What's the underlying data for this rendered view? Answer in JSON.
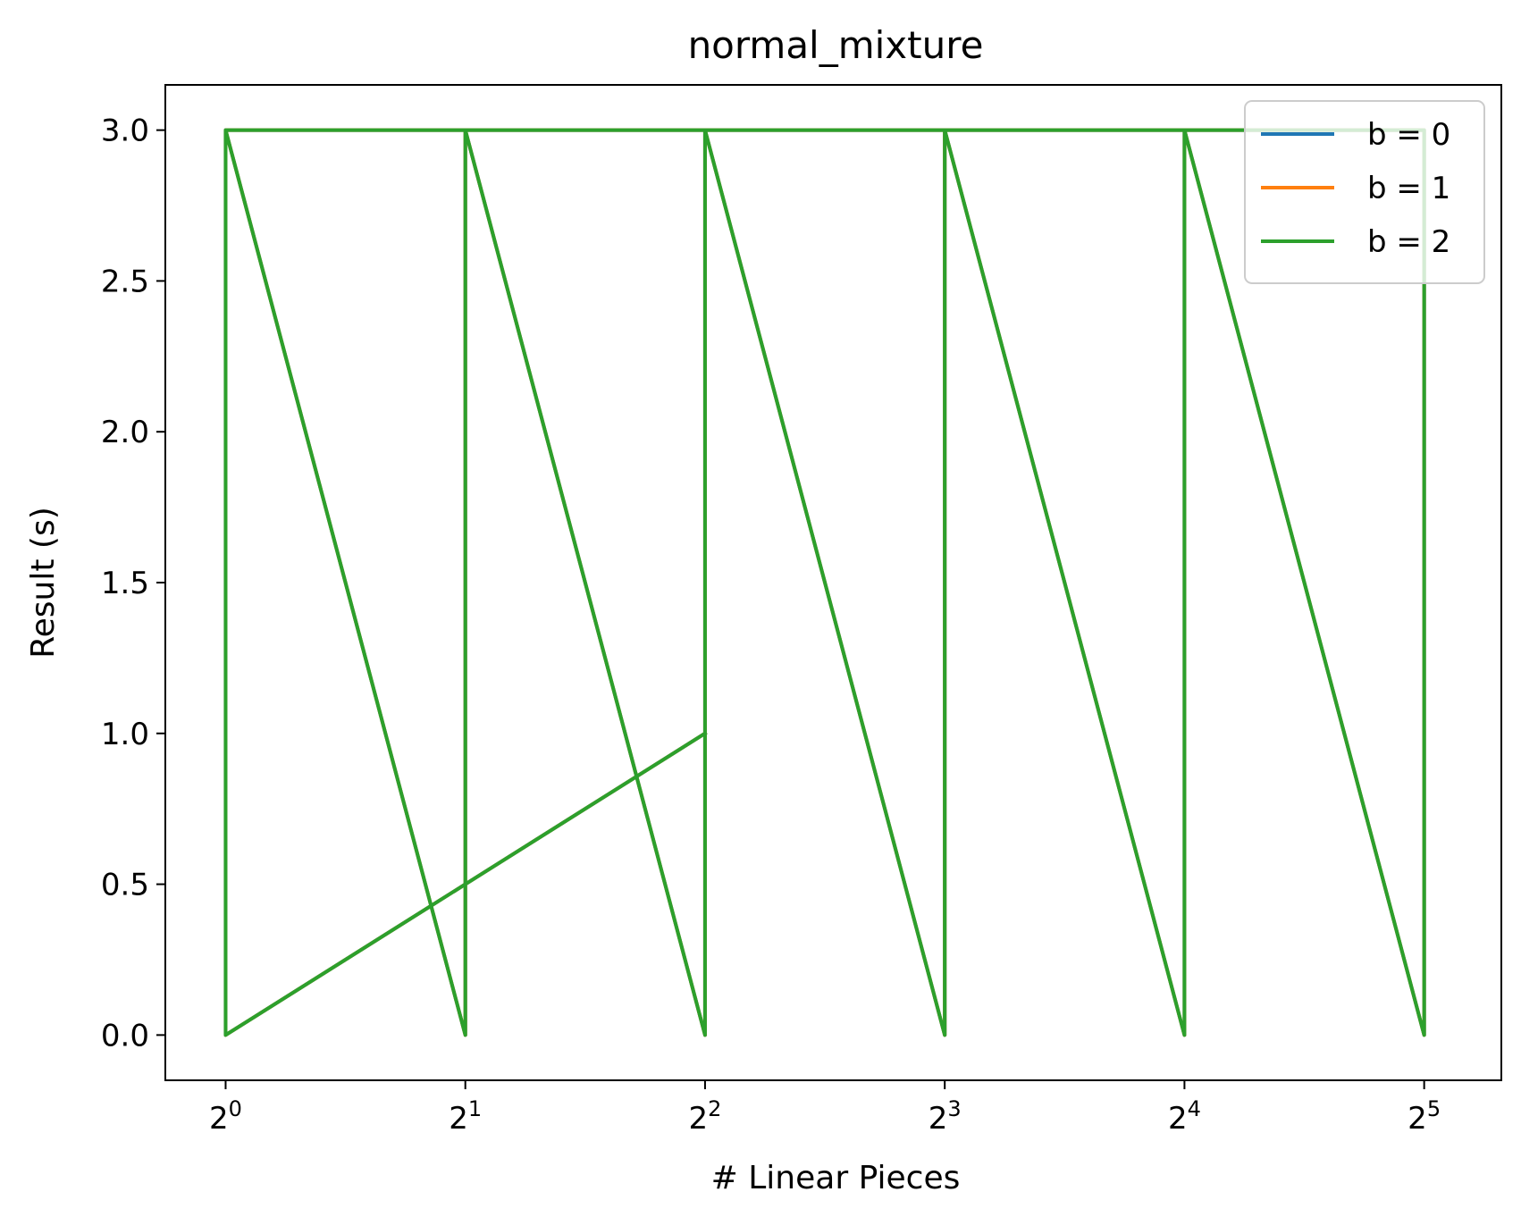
{
  "chart_data": {
    "type": "line",
    "title": "normal_mixture",
    "xlabel": "# Linear Pieces",
    "ylabel": "Result (s)",
    "xscale": "log2",
    "xlim": [
      0.84,
      40.0
    ],
    "ylim": [
      -0.15,
      3.15
    ],
    "grid": false,
    "legend_position": "top-right",
    "x_ticks": [
      {
        "value": 1,
        "base": "2",
        "exp": "0"
      },
      {
        "value": 2,
        "base": "2",
        "exp": "1"
      },
      {
        "value": 4,
        "base": "2",
        "exp": "2"
      },
      {
        "value": 8,
        "base": "2",
        "exp": "3"
      },
      {
        "value": 16,
        "base": "2",
        "exp": "4"
      },
      {
        "value": 32,
        "base": "2",
        "exp": "5"
      }
    ],
    "y_ticks": [
      {
        "value": 0.0,
        "label": "0.0"
      },
      {
        "value": 0.5,
        "label": "0.5"
      },
      {
        "value": 1.0,
        "label": "1.0"
      },
      {
        "value": 1.5,
        "label": "1.5"
      },
      {
        "value": 2.0,
        "label": "2.0"
      },
      {
        "value": 2.5,
        "label": "2.5"
      },
      {
        "value": 3.0,
        "label": "3.0"
      }
    ],
    "series": [
      {
        "name": "b = 0",
        "color": "#1f77b4",
        "x": [
          1,
          1,
          2,
          2,
          4,
          4,
          8,
          8,
          16,
          16,
          32,
          32,
          1,
          1,
          2,
          4
        ],
        "y": [
          1.0,
          3.0,
          0.0,
          3.0,
          0.0,
          3.0,
          0.0,
          3.0,
          0.0,
          3.0,
          0.0,
          3.0,
          3.0,
          0.0,
          0.5,
          1.0
        ]
      },
      {
        "name": "b = 1",
        "color": "#ff7f0e",
        "x": [
          1,
          1,
          2,
          2,
          4,
          4,
          8,
          8,
          16,
          16,
          32,
          32,
          1,
          1,
          2,
          4
        ],
        "y": [
          1.0,
          3.0,
          0.0,
          3.0,
          0.0,
          3.0,
          0.0,
          3.0,
          0.0,
          3.0,
          0.0,
          3.0,
          3.0,
          0.0,
          0.5,
          1.0
        ]
      },
      {
        "name": "b = 2",
        "color": "#2ca02c",
        "x": [
          1,
          1,
          2,
          2,
          4,
          4,
          8,
          8,
          16,
          16,
          32,
          32,
          1,
          1,
          2,
          4
        ],
        "y": [
          1.0,
          3.0,
          0.0,
          3.0,
          0.0,
          3.0,
          0.0,
          3.0,
          0.0,
          3.0,
          0.0,
          3.0,
          3.0,
          0.0,
          0.5,
          1.0
        ]
      }
    ]
  }
}
